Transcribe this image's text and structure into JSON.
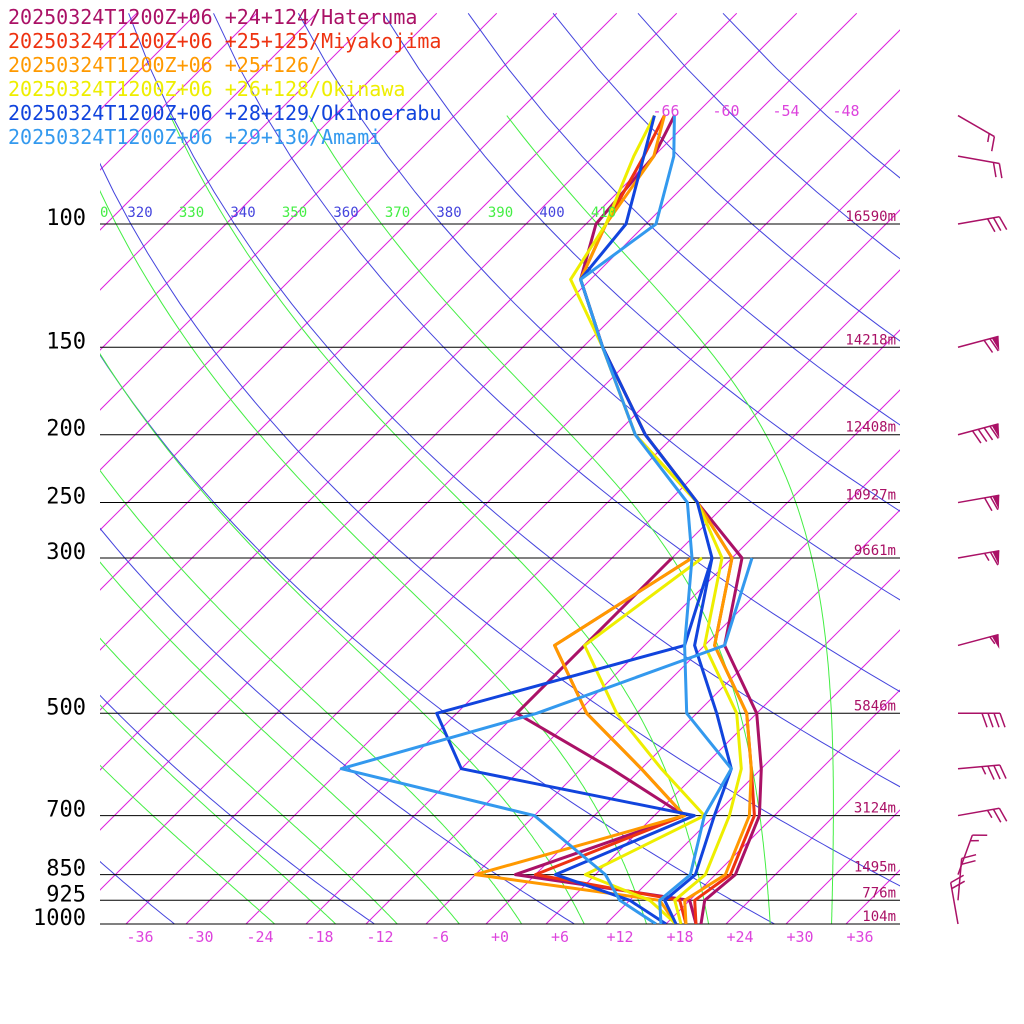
{
  "chart_data": {
    "type": "line",
    "title_lines": [
      {
        "text": "20250324T1200Z+06 +24+124/Hateruma",
        "color": "#aa1166"
      },
      {
        "text": "20250324T1200Z+06 +25+125/Miyakojima",
        "color": "#ee3311"
      },
      {
        "text": "20250324T1200Z+06 +25+126/",
        "color": "#ff9900"
      },
      {
        "text": "20250324T1200Z+06 +26+128/Okinawa",
        "color": "#eeee00"
      },
      {
        "text": "20250324T1200Z+06 +28+129/Okinoerabu",
        "color": "#1144dd"
      },
      {
        "text": "20250324T1200Z+06 +29+130/Amami",
        "color": "#3399ee"
      }
    ],
    "pressure_levels": [
      {
        "label": "100",
        "p": 100
      },
      {
        "label": "150",
        "p": 150
      },
      {
        "label": "200",
        "p": 200
      },
      {
        "label": "250",
        "p": 250
      },
      {
        "label": "300",
        "p": 300
      },
      {
        "label": "500",
        "p": 500
      },
      {
        "label": "700",
        "p": 700
      },
      {
        "label": "850",
        "p": 850
      },
      {
        "label": "925",
        "p": 925
      },
      {
        "label": "1000",
        "p": 1000
      }
    ],
    "heights": [
      {
        "label": "16590m",
        "p": 100
      },
      {
        "label": "14218m",
        "p": 150
      },
      {
        "label": "12408m",
        "p": 200
      },
      {
        "label": "10927m",
        "p": 250
      },
      {
        "label": "9661m",
        "p": 300
      },
      {
        "label": "5846m",
        "p": 500
      },
      {
        "label": "3124m",
        "p": 700
      },
      {
        "label": "1495m",
        "p": 850
      },
      {
        "label": "776m",
        "p": 925
      },
      {
        "label": "104m",
        "p": 1000
      }
    ],
    "temperature_ticks": [
      "-36",
      "-30",
      "-24",
      "-18",
      "-12",
      "-6",
      "+0",
      "+6",
      "+12",
      "+18",
      "+24",
      "+30",
      "+36"
    ],
    "upper_temperature_ticks": [
      "-66",
      "-60",
      "-54",
      "-48"
    ],
    "theta_labels": [
      {
        "text": "0",
        "color": "#44ee44"
      },
      {
        "text": "320",
        "color": "#4444dd"
      },
      {
        "text": "330",
        "color": "#44ee44"
      },
      {
        "text": "340",
        "color": "#4444dd"
      },
      {
        "text": "350",
        "color": "#44ee44"
      },
      {
        "text": "360",
        "color": "#4444dd"
      },
      {
        "text": "370",
        "color": "#44ee44"
      },
      {
        "text": "380",
        "color": "#4444dd"
      },
      {
        "text": "390",
        "color": "#44ee44"
      },
      {
        "text": "400",
        "color": "#4444dd"
      },
      {
        "text": "410",
        "color": "#44ee44"
      }
    ],
    "xlim": [
      -40,
      40
    ],
    "ylim": [
      1000,
      70
    ],
    "series": [
      {
        "name": "Hateruma",
        "color": "#aa1166",
        "temperature": [
          [
            1000,
            19.5
          ],
          [
            925,
            17.5
          ],
          [
            850,
            18
          ],
          [
            700,
            14.5
          ],
          [
            600,
            10
          ],
          [
            500,
            4
          ],
          [
            400,
            -6
          ],
          [
            300,
            -13
          ],
          [
            250,
            -23
          ],
          [
            200,
            -35
          ],
          [
            150,
            -48
          ],
          [
            120,
            -57
          ],
          [
            100,
            -61
          ],
          [
            80,
            -62
          ],
          [
            70,
            -64
          ]
        ],
        "dewpoint": [
          [
            1000,
            19
          ],
          [
            925,
            16
          ],
          [
            850,
            -4
          ],
          [
            700,
            7
          ],
          [
            600,
            -5
          ],
          [
            500,
            -20
          ],
          [
            400,
            -20
          ],
          [
            300,
            -20
          ]
        ]
      },
      {
        "name": "Miyakojima",
        "color": "#ee3311",
        "temperature": [
          [
            1000,
            19
          ],
          [
            925,
            16.5
          ],
          [
            850,
            17.5
          ],
          [
            700,
            14
          ],
          [
            600,
            9
          ],
          [
            500,
            3
          ],
          [
            400,
            -7
          ],
          [
            300,
            -14
          ],
          [
            250,
            -23
          ],
          [
            200,
            -35
          ],
          [
            150,
            -48
          ],
          [
            120,
            -57
          ],
          [
            100,
            -60
          ],
          [
            80,
            -63
          ],
          [
            70,
            -65
          ]
        ],
        "dewpoint": [
          [
            1000,
            18
          ],
          [
            925,
            15
          ],
          [
            850,
            -2
          ],
          [
            700,
            7
          ],
          [
            600,
            -2
          ],
          [
            500,
            -13
          ],
          [
            400,
            -23
          ],
          [
            300,
            -18
          ]
        ]
      },
      {
        "name": "+25+126",
        "color": "#ff9900",
        "temperature": [
          [
            1000,
            18
          ],
          [
            925,
            15.5
          ],
          [
            850,
            17
          ],
          [
            700,
            13.5
          ],
          [
            600,
            9
          ],
          [
            500,
            3
          ],
          [
            400,
            -7
          ],
          [
            300,
            -14
          ],
          [
            250,
            -23
          ],
          [
            200,
            -36
          ],
          [
            150,
            -48
          ],
          [
            120,
            -57
          ],
          [
            100,
            -60
          ],
          [
            80,
            -62
          ],
          [
            70,
            -65
          ]
        ],
        "dewpoint": [
          [
            1000,
            17
          ],
          [
            925,
            13
          ],
          [
            850,
            -8
          ],
          [
            700,
            7
          ],
          [
            600,
            -2
          ],
          [
            500,
            -13
          ],
          [
            400,
            -23
          ],
          [
            300,
            -18
          ]
        ]
      },
      {
        "name": "Okinawa",
        "color": "#eeee00",
        "temperature": [
          [
            1000,
            17.5
          ],
          [
            925,
            14.5
          ],
          [
            850,
            15
          ],
          [
            700,
            11.5
          ],
          [
            600,
            8
          ],
          [
            500,
            2
          ],
          [
            400,
            -8
          ],
          [
            300,
            -15
          ],
          [
            250,
            -23
          ],
          [
            200,
            -36
          ],
          [
            150,
            -48
          ],
          [
            120,
            -58
          ],
          [
            100,
            -60
          ],
          [
            80,
            -64
          ],
          [
            70,
            -66
          ]
        ],
        "dewpoint": [
          [
            1000,
            17
          ],
          [
            925,
            12
          ],
          [
            850,
            3
          ],
          [
            700,
            9
          ],
          [
            600,
            0
          ],
          [
            500,
            -10
          ],
          [
            400,
            -20
          ],
          [
            300,
            -17
          ]
        ]
      },
      {
        "name": "Okinoerabu",
        "color": "#1144dd",
        "temperature": [
          [
            1000,
            17
          ],
          [
            925,
            13.5
          ],
          [
            850,
            14
          ],
          [
            700,
            10
          ],
          [
            600,
            7
          ],
          [
            500,
            0
          ],
          [
            400,
            -9
          ],
          [
            300,
            -16
          ],
          [
            250,
            -23
          ],
          [
            200,
            -35
          ],
          [
            150,
            -48
          ],
          [
            120,
            -57
          ],
          [
            100,
            -58
          ],
          [
            80,
            -63
          ],
          [
            70,
            -66
          ]
        ],
        "dewpoint": [
          [
            1000,
            16
          ],
          [
            925,
            10
          ],
          [
            850,
            0
          ],
          [
            700,
            8
          ],
          [
            600,
            -20
          ],
          [
            500,
            -28
          ],
          [
            400,
            -10
          ],
          [
            300,
            -16
          ]
        ]
      },
      {
        "name": "Amami",
        "color": "#3399ee",
        "temperature": [
          [
            1000,
            15.5
          ],
          [
            925,
            13
          ],
          [
            850,
            13.5
          ],
          [
            700,
            9
          ],
          [
            600,
            7
          ],
          [
            500,
            -3
          ],
          [
            400,
            -10
          ],
          [
            300,
            -18
          ],
          [
            250,
            -24
          ],
          [
            200,
            -36
          ],
          [
            150,
            -48
          ],
          [
            120,
            -57
          ],
          [
            100,
            -55
          ],
          [
            80,
            -60
          ],
          [
            70,
            -64
          ]
        ],
        "dewpoint": [
          [
            1000,
            15
          ],
          [
            925,
            9
          ],
          [
            850,
            5
          ],
          [
            700,
            -8
          ],
          [
            600,
            -32
          ],
          [
            500,
            -18
          ],
          [
            400,
            -6
          ],
          [
            300,
            -12
          ]
        ]
      }
    ],
    "wind_barbs": [
      {
        "p": 1000,
        "speed_kt": 20,
        "dir_deg": 170
      },
      {
        "p": 925,
        "speed_kt": 20,
        "dir_deg": 185
      },
      {
        "p": 850,
        "speed_kt": 15,
        "dir_deg": 200
      },
      {
        "p": 700,
        "speed_kt": 25,
        "dir_deg": 260
      },
      {
        "p": 600,
        "speed_kt": 35,
        "dir_deg": 265
      },
      {
        "p": 500,
        "speed_kt": 40,
        "dir_deg": 270
      },
      {
        "p": 400,
        "speed_kt": 55,
        "dir_deg": 255
      },
      {
        "p": 300,
        "speed_kt": 65,
        "dir_deg": 260
      },
      {
        "p": 250,
        "speed_kt": 70,
        "dir_deg": 260
      },
      {
        "p": 200,
        "speed_kt": 90,
        "dir_deg": 255
      },
      {
        "p": 150,
        "speed_kt": 70,
        "dir_deg": 255
      },
      {
        "p": 100,
        "speed_kt": 30,
        "dir_deg": 260
      },
      {
        "p": 80,
        "speed_kt": 20,
        "dir_deg": 280
      },
      {
        "p": 70,
        "speed_kt": 15,
        "dir_deg": 300
      }
    ],
    "colors": {
      "isotherm": "#dd22dd",
      "dry_adiabat": "#4444dd",
      "moist_adiabat": "#44ee44",
      "isobar": "#000000",
      "barb": "#aa1166"
    }
  }
}
